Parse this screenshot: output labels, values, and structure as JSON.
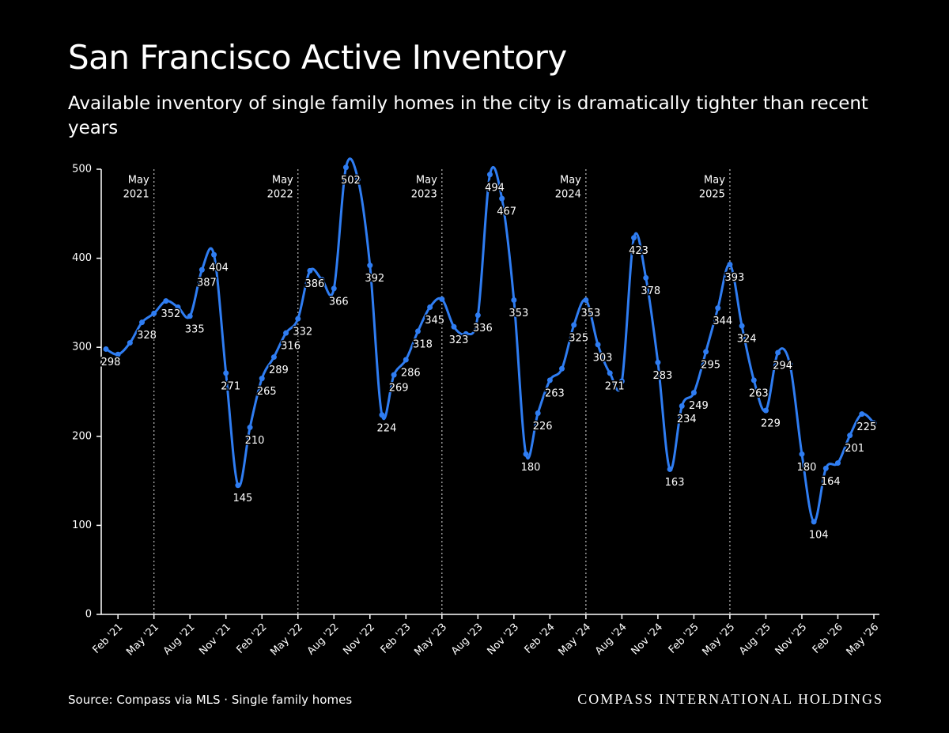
{
  "chart_data": {
    "type": "line",
    "title": "San Francisco Active Inventory",
    "subtitle": "Available inventory of single family homes in the city is dramatically tighter than recent years",
    "source": "Source: Compass via MLS · Single family homes",
    "brand": "COMPASS INTERNATIONAL HOLDINGS",
    "categories": [
      null,
      "Feb '21",
      null,
      null,
      "May '21",
      null,
      null,
      "Aug '21",
      null,
      null,
      "Nov '21",
      null,
      null,
      "Feb '22",
      null,
      null,
      "May '22",
      null,
      null,
      "Aug '22",
      null,
      null,
      "Nov '22",
      null,
      null,
      "Feb '23",
      null,
      null,
      "May '23",
      null,
      null,
      "Aug '23",
      null,
      null,
      "Nov '23",
      null,
      null,
      "Feb '24",
      null,
      null,
      "May '24",
      null,
      null,
      "Aug '24",
      null,
      null,
      "Nov '24",
      null,
      null,
      "Feb '25",
      null,
      null,
      "May '25",
      null,
      null,
      "Aug '25",
      null,
      null,
      "Nov '25",
      null,
      null,
      "Feb '26",
      null,
      null,
      "May '26"
    ],
    "series": [
      {
        "color": "#2f7df2",
        "values": [
          298,
          292,
          305,
          328,
          338,
          352,
          345,
          335,
          387,
          404,
          271,
          145,
          210,
          265,
          289,
          316,
          332,
          386,
          376,
          366,
          502,
          489,
          392,
          224,
          269,
          286,
          318,
          345,
          354,
          323,
          315,
          336,
          494,
          467,
          353,
          180,
          226,
          263,
          276,
          325,
          353,
          303,
          271,
          262,
          423,
          378,
          283,
          163,
          234,
          249,
          295,
          344,
          393,
          324,
          263,
          229,
          294,
          281,
          180,
          104,
          164,
          170,
          201,
          225,
          215
        ],
        "value_labels": [
          "298",
          null,
          null,
          "328",
          null,
          "352",
          null,
          "335",
          "387",
          "404",
          "271",
          "145",
          "210",
          "265",
          "289",
          "316",
          "332",
          "386",
          null,
          "366",
          "502",
          null,
          "392",
          "224",
          "269",
          "286",
          "318",
          "345",
          null,
          "323",
          null,
          "336",
          "494",
          "467",
          "353",
          "180",
          "226",
          "263",
          null,
          "325",
          "353",
          "303",
          "271",
          null,
          "423",
          "378",
          "283",
          "163",
          "234",
          "249",
          "295",
          "344",
          "393",
          "324",
          "263",
          "229",
          "294",
          null,
          "180",
          "104",
          "164",
          null,
          "201",
          "225",
          null
        ]
      }
    ],
    "annotations": [
      {
        "at": "May '21",
        "lines": [
          "May",
          "2021"
        ]
      },
      {
        "at": "May '22",
        "lines": [
          "May",
          "2022"
        ]
      },
      {
        "at": "May '23",
        "lines": [
          "May",
          "2023"
        ]
      },
      {
        "at": "May '24",
        "lines": [
          "May",
          "2024"
        ]
      },
      {
        "at": "May '25",
        "lines": [
          "May",
          "2025"
        ]
      }
    ],
    "ylim": [
      0,
      500
    ],
    "yticks": [
      0,
      100,
      200,
      300,
      400,
      500
    ],
    "grid": false
  }
}
